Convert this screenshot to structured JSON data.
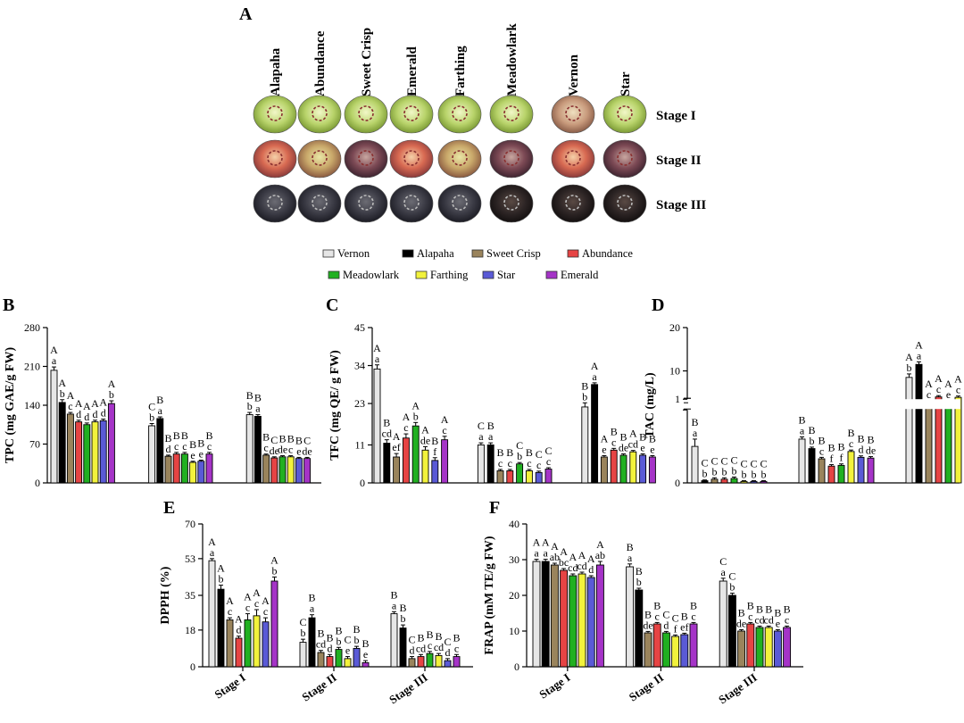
{
  "panel_a": {
    "letter": "A",
    "cultivars": [
      "Alapaha",
      "Abundance",
      "Sweet Crisp",
      "Emerald",
      "Farthing",
      "Meadowlark",
      "Vernon",
      "Star"
    ],
    "stages": [
      "Stage I",
      "Stage II",
      "Stage III"
    ]
  },
  "legend": {
    "entries": [
      {
        "name": "Vernon",
        "color": "#e6e6e6"
      },
      {
        "name": "Alapaha",
        "color": "#000000"
      },
      {
        "name": "Sweet Crisp",
        "color": "#9a845c"
      },
      {
        "name": "Abundance",
        "color": "#e64444"
      },
      {
        "name": "Meadowlark",
        "color": "#21b021"
      },
      {
        "name": "Farthing",
        "color": "#f2f23c"
      },
      {
        "name": "Star",
        "color": "#5a5ad6"
      },
      {
        "name": "Emerald",
        "color": "#a534c7"
      }
    ]
  },
  "chart_data": [
    {
      "panel": "B",
      "type": "bar",
      "ylabel": "TPC (mg GAE/g FW)",
      "ylim": [
        0,
        280
      ],
      "yticks": [
        "0",
        "70",
        "140",
        "210",
        "280"
      ],
      "ytick_values": [
        0,
        70,
        140,
        210,
        280
      ],
      "categories": [
        "Stage I",
        "Stage II",
        "Stage III"
      ],
      "show_xlabels": false,
      "series": [
        {
          "name": "Vernon",
          "values": [
            203,
            103,
            123
          ]
        },
        {
          "name": "Alapaha",
          "values": [
            145,
            116,
            120
          ]
        },
        {
          "name": "Sweet Crisp",
          "values": [
            124,
            48,
            50
          ]
        },
        {
          "name": "Abundance",
          "values": [
            110,
            52,
            45
          ]
        },
        {
          "name": "Meadowlark",
          "values": [
            105,
            52,
            47
          ]
        },
        {
          "name": "Farthing",
          "values": [
            110,
            37,
            47
          ]
        },
        {
          "name": "Star",
          "values": [
            112,
            39,
            44
          ]
        },
        {
          "name": "Emerald",
          "values": [
            143,
            52,
            44
          ]
        }
      ],
      "errors": [
        [
          6,
          4,
          4
        ],
        [
          5,
          3,
          3
        ],
        [
          3,
          2,
          2
        ],
        [
          3,
          3,
          2
        ],
        [
          3,
          3,
          2
        ],
        [
          3,
          2,
          2
        ],
        [
          3,
          2,
          2
        ],
        [
          5,
          3,
          2
        ]
      ],
      "annotations": [
        [
          [
            "A",
            "a"
          ],
          [
            "C",
            "b"
          ],
          [
            "B",
            "b"
          ]
        ],
        [
          [
            "A",
            "b"
          ],
          [
            "B",
            "a"
          ],
          [
            "B",
            "a"
          ]
        ],
        [
          [
            "A",
            "c"
          ],
          [
            "B",
            "d"
          ],
          [
            "B",
            "c"
          ]
        ],
        [
          [
            "A",
            "d"
          ],
          [
            "B",
            "c"
          ],
          [
            "C",
            "de"
          ]
        ],
        [
          [
            "A",
            "d"
          ],
          [
            "B",
            "c"
          ],
          [
            "B",
            "de"
          ]
        ],
        [
          [
            "A",
            "d"
          ],
          [
            "B",
            "e"
          ],
          [
            "B",
            "c"
          ]
        ],
        [
          [
            "A",
            "d"
          ],
          [
            "B",
            "e"
          ],
          [
            "B",
            "e"
          ]
        ],
        [
          [
            "A",
            "b"
          ],
          [
            "B",
            "c"
          ],
          [
            "C",
            "de"
          ]
        ]
      ]
    },
    {
      "panel": "C",
      "type": "bar",
      "ylabel": "TFC (mg QE/ g FW)",
      "ylim": [
        0,
        45
      ],
      "yticks": [
        "0",
        "11",
        "23",
        "34",
        "45"
      ],
      "ytick_values": [
        0,
        11,
        23,
        34,
        45
      ],
      "categories": [
        "Stage I",
        "Stage II",
        "Stage III"
      ],
      "show_xlabels": false,
      "series": [
        {
          "name": "Vernon",
          "values": [
            33,
            11,
            22
          ]
        },
        {
          "name": "Alapaha",
          "values": [
            11.5,
            11,
            28.5
          ]
        },
        {
          "name": "Sweet Crisp",
          "values": [
            7.5,
            3.5,
            7.5
          ]
        },
        {
          "name": "Abundance",
          "values": [
            13,
            3.5,
            9.5
          ]
        },
        {
          "name": "Meadowlark",
          "values": [
            16.5,
            5.5,
            8
          ]
        },
        {
          "name": "Farthing",
          "values": [
            9.5,
            3.5,
            9
          ]
        },
        {
          "name": "Star",
          "values": [
            6.5,
            3,
            8
          ]
        },
        {
          "name": "Emerald",
          "values": [
            12.5,
            4,
            7.5
          ]
        }
      ],
      "errors": [
        [
          1.2,
          0.6,
          1.2
        ],
        [
          1,
          0.6,
          0.5
        ],
        [
          1,
          0.4,
          0.4
        ],
        [
          1.2,
          0.4,
          0.5
        ],
        [
          1,
          0.4,
          0.4
        ],
        [
          1,
          0.4,
          0.4
        ],
        [
          0.8,
          0.4,
          0.4
        ],
        [
          1,
          0.4,
          0.4
        ]
      ],
      "annotations": [
        [
          [
            "A",
            "a"
          ],
          [
            "C",
            "a"
          ],
          [
            "B",
            "b"
          ]
        ],
        [
          [
            "B",
            "cd"
          ],
          [
            "B",
            "a"
          ],
          [
            "A",
            "a"
          ]
        ],
        [
          [
            "A",
            "ef"
          ],
          [
            "B",
            "c"
          ],
          [
            "A",
            "e"
          ]
        ],
        [
          [
            "A",
            "c"
          ],
          [
            "B",
            "c"
          ],
          [
            "B",
            "c"
          ]
        ],
        [
          [
            "A",
            "b"
          ],
          [
            "C",
            "b"
          ],
          [
            "B",
            "de"
          ]
        ],
        [
          [
            "A",
            "de"
          ],
          [
            "B",
            "c"
          ],
          [
            "A",
            "cd"
          ]
        ],
        [
          [
            "B",
            "f"
          ],
          [
            "C",
            "c"
          ],
          [
            "B",
            "e"
          ]
        ],
        [
          [
            "A",
            "c"
          ],
          [
            "C",
            "c"
          ],
          [
            "B",
            "e"
          ]
        ]
      ]
    },
    {
      "panel": "D",
      "type": "bar",
      "ylabel": "TAC (mg/L)",
      "broken_axis": true,
      "ylim_lower": [
        0,
        1
      ],
      "ylim_upper": [
        1,
        20
      ],
      "yticks": [
        "0",
        "1",
        "10",
        "20"
      ],
      "categories": [
        "Stage I",
        "Stage II",
        "Stage III"
      ],
      "show_xlabels": false,
      "series": [
        {
          "name": "Vernon",
          "values": [
            0.5,
            0.6,
            8.5
          ]
        },
        {
          "name": "Alapaha",
          "values": [
            0.03,
            0.47,
            11.5
          ]
        },
        {
          "name": "Sweet Crisp",
          "values": [
            0.05,
            0.33,
            2.8
          ]
        },
        {
          "name": "Abundance",
          "values": [
            0.05,
            0.23,
            4.0
          ]
        },
        {
          "name": "Meadowlark",
          "values": [
            0.06,
            0.24,
            2.8
          ]
        },
        {
          "name": "Farthing",
          "values": [
            0.02,
            0.43,
            3.9
          ]
        },
        {
          "name": "Star",
          "values": [
            0.02,
            0.35,
            3.3
          ]
        },
        {
          "name": "Emerald",
          "values": [
            0.02,
            0.34,
            3.0
          ]
        }
      ],
      "errors": [
        [
          0.1,
          0.03,
          0.8
        ],
        [
          0.01,
          0.02,
          0.6
        ],
        [
          0.02,
          0.02,
          0.3
        ],
        [
          0.02,
          0.02,
          0.3
        ],
        [
          0.02,
          0.02,
          0.3
        ],
        [
          0.01,
          0.02,
          0.3
        ],
        [
          0.01,
          0.02,
          0.3
        ],
        [
          0.01,
          0.02,
          0.3
        ]
      ],
      "annotations": [
        [
          [
            "B",
            "a"
          ],
          [
            "B",
            "a"
          ],
          [
            "A",
            "b"
          ]
        ],
        [
          [
            "C",
            "b"
          ],
          [
            "B",
            "b"
          ],
          [
            "A",
            "a"
          ]
        ],
        [
          [
            "C",
            "b"
          ],
          [
            "B",
            "c"
          ],
          [
            "A",
            "c"
          ]
        ],
        [
          [
            "C",
            "b"
          ],
          [
            "B",
            "f"
          ],
          [
            "A",
            "c"
          ]
        ],
        [
          [
            "C",
            "b"
          ],
          [
            "B",
            "f"
          ],
          [
            "A",
            "e"
          ]
        ],
        [
          [
            "C",
            "b"
          ],
          [
            "B",
            "c"
          ],
          [
            "A",
            "c"
          ]
        ],
        [
          [
            "C",
            "b"
          ],
          [
            "B",
            "d"
          ],
          [
            "A",
            "d"
          ]
        ],
        [
          [
            "C",
            "b"
          ],
          [
            "B",
            "de"
          ],
          [
            "A",
            "e"
          ]
        ]
      ]
    },
    {
      "panel": "E",
      "type": "bar",
      "ylabel": "DPPH (%)",
      "ylim": [
        0,
        70
      ],
      "yticks": [
        "0",
        "18",
        "35",
        "53",
        "70"
      ],
      "ytick_values": [
        0,
        18,
        35,
        53,
        70
      ],
      "categories": [
        "Stage I",
        "Stage II",
        "Stage III"
      ],
      "show_xlabels": true,
      "series": [
        {
          "name": "Vernon",
          "values": [
            52,
            12,
            26
          ]
        },
        {
          "name": "Alapaha",
          "values": [
            38,
            24,
            19
          ]
        },
        {
          "name": "Sweet Crisp",
          "values": [
            23,
            7,
            4
          ]
        },
        {
          "name": "Abundance",
          "values": [
            14,
            5,
            5
          ]
        },
        {
          "name": "Meadowlark",
          "values": [
            23,
            8.5,
            6.5
          ]
        },
        {
          "name": "Farthing",
          "values": [
            25,
            4,
            5.5
          ]
        },
        {
          "name": "Star",
          "values": [
            22,
            9,
            3
          ]
        },
        {
          "name": "Emerald",
          "values": [
            42,
            2,
            5
          ]
        }
      ],
      "errors": [
        [
          1,
          1.5,
          1
        ],
        [
          2,
          1.5,
          1.5
        ],
        [
          1,
          1,
          1
        ],
        [
          1,
          1,
          1
        ],
        [
          3,
          1,
          1
        ],
        [
          3,
          1,
          1
        ],
        [
          2,
          1,
          1
        ],
        [
          2,
          1,
          1
        ]
      ],
      "annotations": [
        [
          [
            "A",
            "a"
          ],
          [
            "C",
            "b"
          ],
          [
            "B",
            "a"
          ]
        ],
        [
          [
            "A",
            "b"
          ],
          [
            "B",
            "a"
          ],
          [
            "B",
            "b"
          ]
        ],
        [
          [
            "A",
            "c"
          ],
          [
            "B",
            "cd"
          ],
          [
            "C",
            "d"
          ]
        ],
        [
          [
            "A",
            "d"
          ],
          [
            "B",
            "d"
          ],
          [
            "B",
            "cd"
          ]
        ],
        [
          [
            "A",
            "c"
          ],
          [
            "B",
            "b"
          ],
          [
            "B",
            "c"
          ]
        ],
        [
          [
            "A",
            "c"
          ],
          [
            "C",
            "e"
          ],
          [
            "B",
            "cd"
          ]
        ],
        [
          [
            "A",
            "c"
          ],
          [
            "B",
            "b"
          ],
          [
            "C",
            "d"
          ]
        ],
        [
          [
            "A",
            "b"
          ],
          [
            "B",
            "e"
          ],
          [
            "B",
            "c"
          ]
        ]
      ]
    },
    {
      "panel": "F",
      "type": "bar",
      "ylabel": "FRAP (mM TE/g FW)",
      "ylim": [
        0,
        40
      ],
      "yticks": [
        "0",
        "10",
        "20",
        "30",
        "40"
      ],
      "ytick_values": [
        0,
        10,
        20,
        30,
        40
      ],
      "categories": [
        "Stage I",
        "Stage II",
        "Stage III"
      ],
      "show_xlabels": true,
      "series": [
        {
          "name": "Vernon",
          "values": [
            29.5,
            28,
            24
          ]
        },
        {
          "name": "Alapaha",
          "values": [
            29.5,
            21.5,
            20
          ]
        },
        {
          "name": "Sweet Crisp",
          "values": [
            28.5,
            9.5,
            10
          ]
        },
        {
          "name": "Abundance",
          "values": [
            27,
            12,
            12
          ]
        },
        {
          "name": "Meadowlark",
          "values": [
            25.5,
            9.5,
            11
          ]
        },
        {
          "name": "Farthing",
          "values": [
            26,
            8.5,
            11
          ]
        },
        {
          "name": "Star",
          "values": [
            25,
            9,
            10
          ]
        },
        {
          "name": "Emerald",
          "values": [
            28.5,
            12,
            11
          ]
        }
      ],
      "errors": [
        [
          0.6,
          0.8,
          0.8
        ],
        [
          0.6,
          0.5,
          0.6
        ],
        [
          0.5,
          0.4,
          0.4
        ],
        [
          0.5,
          0.4,
          0.4
        ],
        [
          0.5,
          0.4,
          0.4
        ],
        [
          0.5,
          0.4,
          0.4
        ],
        [
          0.5,
          0.4,
          0.4
        ],
        [
          1,
          0.4,
          0.4
        ]
      ],
      "annotations": [
        [
          [
            "A",
            "a"
          ],
          [
            "B",
            "a"
          ],
          [
            "C",
            "a"
          ]
        ],
        [
          [
            "A",
            "a"
          ],
          [
            "B",
            "b"
          ],
          [
            "C",
            "b"
          ]
        ],
        [
          [
            "A",
            "ab"
          ],
          [
            "B",
            "de"
          ],
          [
            "B",
            "de"
          ]
        ],
        [
          [
            "A",
            "bc"
          ],
          [
            "B",
            "c"
          ],
          [
            "B",
            "c"
          ]
        ],
        [
          [
            "A",
            "cd"
          ],
          [
            "C",
            "d"
          ],
          [
            "B",
            "cd"
          ]
        ],
        [
          [
            "A",
            "cd"
          ],
          [
            "C",
            "f"
          ],
          [
            "B",
            "cd"
          ]
        ],
        [
          [
            "A",
            "d"
          ],
          [
            "B",
            "ef"
          ],
          [
            "B",
            "e"
          ]
        ],
        [
          [
            "A",
            "ab"
          ],
          [
            "B",
            "c"
          ],
          [
            "B",
            "c"
          ]
        ]
      ]
    }
  ]
}
